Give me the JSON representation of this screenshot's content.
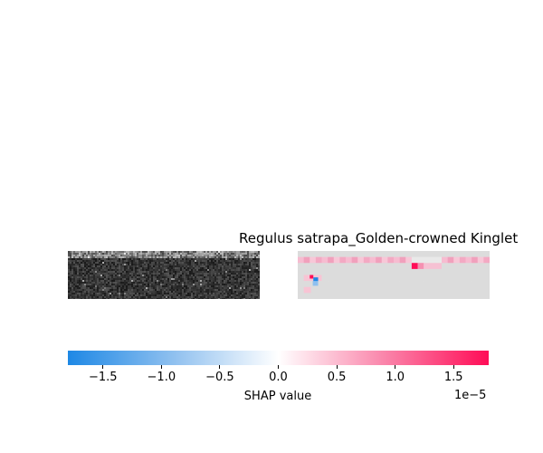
{
  "chart_data": {
    "type": "heatmap",
    "title": "Regulus satrapa_Golden-crowned Kinglet",
    "panels": [
      "spectrogram",
      "shap-heatmap"
    ],
    "colorbar": {
      "label": "SHAP value",
      "offset_label": "1e−5",
      "range": [
        -1.8,
        1.8
      ],
      "ticks": [
        -1.5,
        -1.0,
        -0.5,
        0.0,
        0.5,
        1.0,
        1.5
      ],
      "tick_labels": [
        "−1.5",
        "−1.0",
        "−0.5",
        "0.0",
        "0.5",
        "1.0",
        "1.5"
      ],
      "colors": {
        "negative": "#1e88e5",
        "zero": "#ffffff",
        "positive": "#ff0d57",
        "background_gray": "#dcdcdc"
      }
    }
  }
}
